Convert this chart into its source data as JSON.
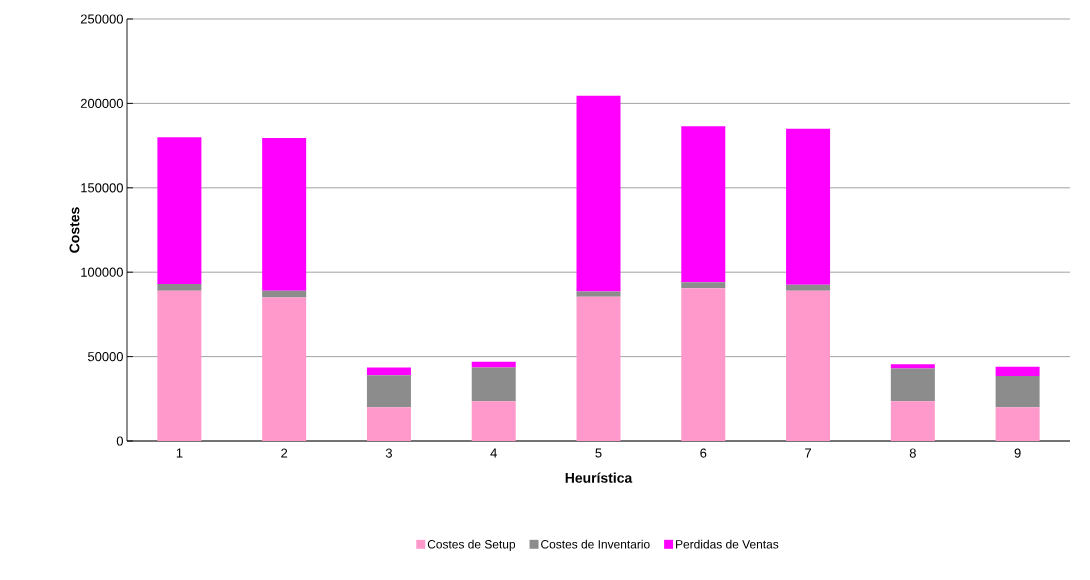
{
  "chart_data": {
    "type": "bar",
    "stacked": true,
    "categories": [
      "1",
      "2",
      "3",
      "4",
      "5",
      "6",
      "7",
      "8",
      "9"
    ],
    "series": [
      {
        "name": "Costes de Setup",
        "color": "#ff99cc",
        "values": [
          89000,
          85000,
          20000,
          23500,
          85500,
          90500,
          89000,
          23500,
          20000
        ]
      },
      {
        "name": "Costes de Inventario",
        "color": "#8c8c8c",
        "values": [
          4000,
          4000,
          19000,
          20000,
          3000,
          3500,
          3500,
          19500,
          18500
        ]
      },
      {
        "name": "Perdidas de Ventas",
        "color": "#ff00ff",
        "values": [
          87000,
          90500,
          4500,
          3500,
          116000,
          92500,
          92500,
          2500,
          5500
        ]
      }
    ],
    "xlabel": "Heurística",
    "ylabel": "Costes",
    "ylim": [
      0,
      250000
    ],
    "yticks": [
      0,
      50000,
      100000,
      150000,
      200000,
      250000
    ],
    "grid": "y",
    "legend": "bottom"
  }
}
